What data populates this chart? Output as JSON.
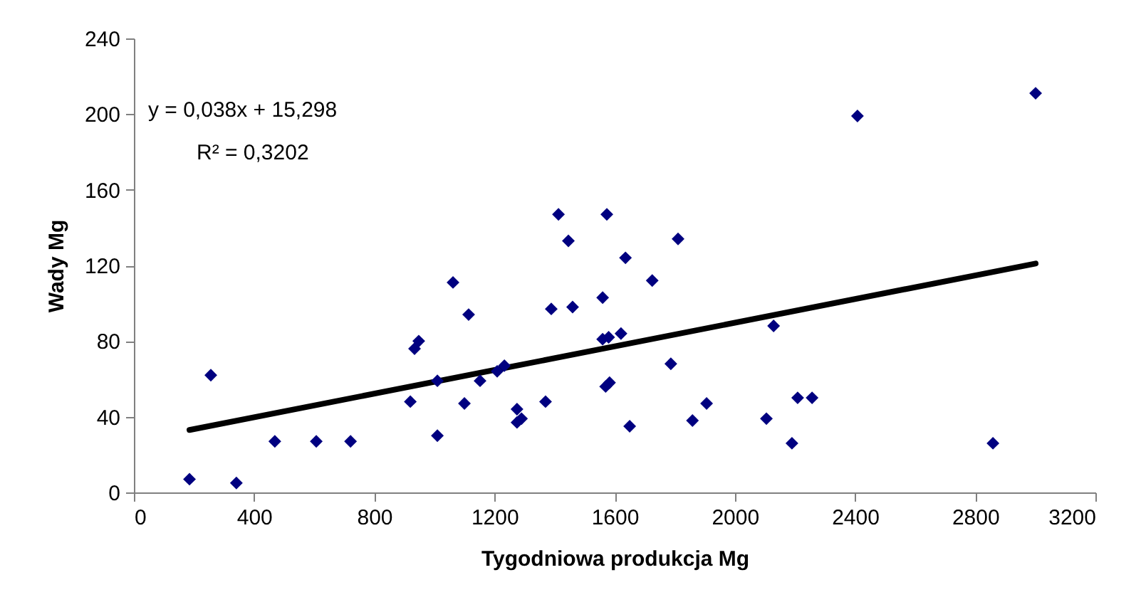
{
  "chart_data": {
    "type": "scatter",
    "xlabel": "Tygodniowa produkcja Mg",
    "ylabel": "Wady Mg",
    "annotations": [
      "y = 0,038x + 15,298",
      "R² = 0,3202"
    ],
    "xlim": [
      0,
      3200
    ],
    "xticks": [
      0,
      400,
      800,
      1200,
      1600,
      2000,
      2400,
      2800,
      3200
    ],
    "ylim": [
      0,
      240
    ],
    "yticks": [
      0,
      40,
      80,
      120,
      160,
      200,
      240
    ],
    "grid": false,
    "series": [
      {
        "marker": "diamond",
        "color": "#000080",
        "x": [
          185,
          256,
          341,
          469,
          607,
          721,
          920,
          934,
          948,
          1010,
          1010,
          1062,
          1114,
          1100,
          1152,
          1209,
          1233,
          1275,
          1290,
          1275,
          1370,
          1389,
          1413,
          1446,
          1460,
          1560,
          1574,
          1560,
          1580,
          1583,
          1570,
          1636,
          1725,
          1811,
          1621,
          1650,
          1787,
          1859,
          1906,
          2105,
          2129,
          2190,
          2209,
          2257,
          2408,
          2859,
          3001
        ],
        "values": [
          7,
          62,
          5,
          27,
          27,
          27,
          48,
          76,
          80,
          30,
          59,
          111,
          94,
          47,
          59,
          64,
          67,
          44,
          39,
          37,
          48,
          97,
          147,
          133,
          98,
          103,
          147,
          81,
          82,
          58,
          56,
          124,
          112,
          134,
          84,
          35,
          68,
          38,
          47,
          39,
          88,
          26,
          50,
          50,
          199,
          26,
          211
        ]
      },
      {
        "type": "line",
        "color": "#000000",
        "x": [
          185,
          3001
        ],
        "values": [
          33,
          121
        ]
      }
    ]
  }
}
